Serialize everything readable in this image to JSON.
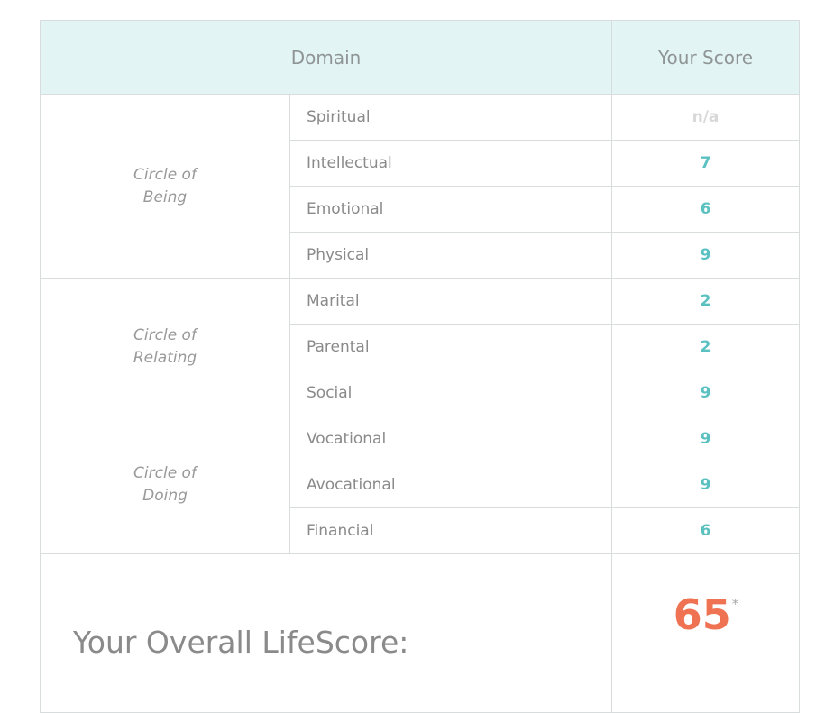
{
  "header": {
    "domain": "Domain",
    "score": "Your Score"
  },
  "groups": [
    {
      "name": "Circle of\nBeing",
      "rows": [
        {
          "domain": "Spiritual",
          "score": "n/a"
        },
        {
          "domain": "Intellectual",
          "score": "7"
        },
        {
          "domain": "Emotional",
          "score": "6"
        },
        {
          "domain": "Physical",
          "score": "9"
        }
      ]
    },
    {
      "name": "Circle of\nRelating",
      "rows": [
        {
          "domain": "Marital",
          "score": "2"
        },
        {
          "domain": "Parental",
          "score": "2"
        },
        {
          "domain": "Social",
          "score": "9"
        }
      ]
    },
    {
      "name": "Circle of\nDoing",
      "rows": [
        {
          "domain": "Vocational",
          "score": "9"
        },
        {
          "domain": "Avocational",
          "score": "9"
        },
        {
          "domain": "Financial",
          "score": "6"
        }
      ]
    }
  ],
  "overall": {
    "label": "Your Overall LifeScore:",
    "score": "65",
    "footnote_mark": "*"
  },
  "colors": {
    "header_bg": "#e2f4f4",
    "score": "#5bc0c0",
    "overall_score": "#ef7352",
    "na": "#d8d8d8"
  }
}
